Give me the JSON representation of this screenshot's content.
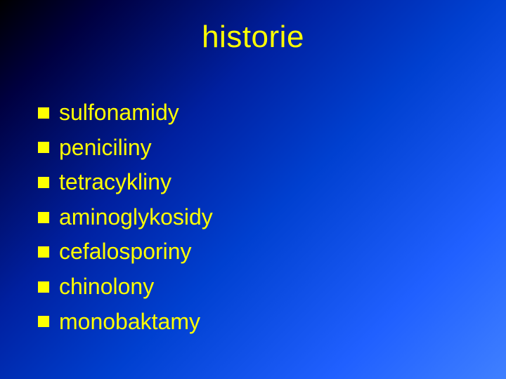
{
  "slide": {
    "title": "historie",
    "title_color": "#ffff00",
    "title_fontsize": 44,
    "background_gradient": [
      "#000000",
      "#000040",
      "#0020a0",
      "#0040d0",
      "#2060ff",
      "#4080ff"
    ],
    "bullet_color": "#ffff00",
    "bullet_size": 16,
    "text_color": "#ffff00",
    "item_fontsize": 32,
    "items": [
      {
        "label": "sulfonamidy"
      },
      {
        "label": "peniciliny"
      },
      {
        "label": "tetracykliny"
      },
      {
        "label": "aminoglykosidy"
      },
      {
        "label": "cefalosporiny"
      },
      {
        "label": "chinolony"
      },
      {
        "label": "monobaktamy"
      }
    ]
  }
}
